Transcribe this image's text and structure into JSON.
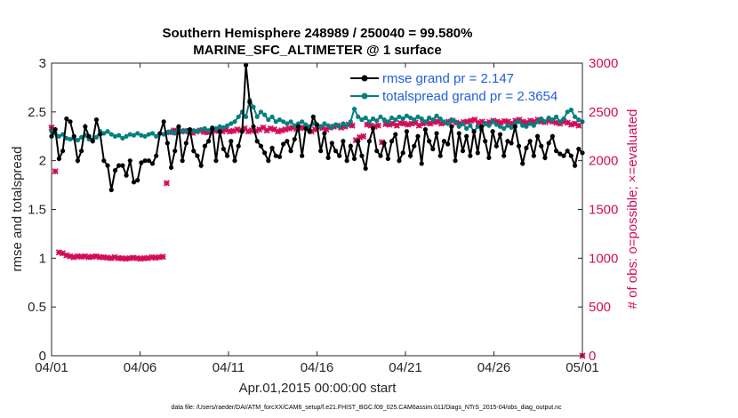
{
  "chart_data": {
    "type": "line",
    "title": "Southern Hemisphere 248989 / 250040 = 99.580%",
    "subtitle": "MARINE_SFC_ALTIMETER @ 1 surface",
    "xlabel": "Apr.01,2015 00:00:00 start",
    "ylabel": "rmse and totalspread",
    "y2label": "# of obs: o=possible; ×=evaluated",
    "footer": "data file: /Users/raeder/DAI/ATM_forcXX/CAM6_setup/f.e21.FHIST_BGC.f09_025.CAM6assim.011/Diags_NTrS_2015-04/obs_diag_output.nc",
    "xlim": [
      0,
      30
    ],
    "x_ticks": [
      0,
      5,
      10,
      15,
      20,
      25,
      30
    ],
    "x_tick_labels": [
      "04/01",
      "04/06",
      "04/11",
      "04/16",
      "04/21",
      "04/26",
      "05/01"
    ],
    "ylim": [
      0,
      3
    ],
    "y_ticks": [
      "0",
      "0.5",
      "1",
      "1.5",
      "2",
      "2.5",
      "3"
    ],
    "y2lim": [
      0,
      3000
    ],
    "y2_ticks": [
      "0",
      "500",
      "1000",
      "1500",
      "2000",
      "2500",
      "3000"
    ],
    "legend": {
      "position": "top-right",
      "entries": [
        {
          "label": "rmse grand pr = 2.147",
          "color": "#000000"
        },
        {
          "label": "totalspread grand pr = 2.3654",
          "color": "#00807f"
        }
      ]
    },
    "colors": {
      "rmse": "#000000",
      "totalspread": "#00807f",
      "obs": "#d10d5a"
    },
    "series": [
      {
        "name": "rmse",
        "axis": "left",
        "color": "#000000",
        "values": [
          2.25,
          2.32,
          2.02,
          2.1,
          2.43,
          2.4,
          2.25,
          2.0,
          2.1,
          2.35,
          2.25,
          2.2,
          2.42,
          2.27,
          2.0,
          1.95,
          1.7,
          1.9,
          1.95,
          1.95,
          1.85,
          2.0,
          1.78,
          1.8,
          1.98,
          2.0,
          2.0,
          1.97,
          2.05,
          2.28,
          2.4,
          2.18,
          1.93,
          2.1,
          2.35,
          2.0,
          2.18,
          2.32,
          2.1,
          2.05,
          1.95,
          2.15,
          2.2,
          2.33,
          2.0,
          2.3,
          2.12,
          2.05,
          2.2,
          2.0,
          2.15,
          2.3,
          2.98,
          2.6,
          2.35,
          2.2,
          2.15,
          2.08,
          2.0,
          2.13,
          2.05,
          2.04,
          2.17,
          2.2,
          2.1,
          2.22,
          2.35,
          2.05,
          2.33,
          2.3,
          2.45,
          2.37,
          2.1,
          2.28,
          2.03,
          2.18,
          2.1,
          2.05,
          2.2,
          2.0,
          2.15,
          2.02,
          2.2,
          2.05,
          1.92,
          2.2,
          2.33,
          2.1,
          2.05,
          2.18,
          2.02,
          2.2,
          2.27,
          2.0,
          2.08,
          2.3,
          2.05,
          2.15,
          2.25,
          1.97,
          2.32,
          2.2,
          2.12,
          2.28,
          2.05,
          2.2,
          2.17,
          2.35,
          2.0,
          2.28,
          2.1,
          2.25,
          2.05,
          2.3,
          2.08,
          2.35,
          2.2,
          2.03,
          2.3,
          2.15,
          2.27,
          2.05,
          2.2,
          2.18,
          2.35,
          2.15,
          1.97,
          2.13,
          2.2,
          2.05,
          2.25,
          2.15,
          2.03,
          2.18,
          2.25,
          2.1,
          2.07,
          2.05,
          2.1,
          2.05,
          1.95,
          2.12,
          2.08
        ]
      },
      {
        "name": "totalspread",
        "axis": "left",
        "color": "#00807f",
        "values": [
          2.3,
          2.28,
          2.25,
          2.27,
          2.23,
          2.22,
          2.23,
          2.21,
          2.24,
          2.26,
          2.22,
          2.21,
          2.24,
          2.3,
          2.28,
          2.3,
          2.27,
          2.25,
          2.26,
          2.23,
          2.25,
          2.27,
          2.26,
          2.28,
          2.26,
          2.25,
          2.27,
          2.28,
          2.25,
          2.28,
          2.27,
          2.29,
          2.3,
          2.28,
          2.32,
          2.3,
          2.31,
          2.29,
          2.31,
          2.3,
          2.32,
          2.33,
          2.31,
          2.34,
          2.33,
          2.35,
          2.34,
          2.36,
          2.38,
          2.4,
          2.45,
          2.5,
          2.45,
          2.62,
          2.55,
          2.45,
          2.5,
          2.47,
          2.42,
          2.45,
          2.4,
          2.42,
          2.4,
          2.38,
          2.4,
          2.36,
          2.38,
          2.4,
          2.37,
          2.35,
          2.38,
          2.36,
          2.35,
          2.38,
          2.36,
          2.34,
          2.37,
          2.35,
          2.38,
          2.36,
          2.4,
          2.53,
          2.45,
          2.42,
          2.44,
          2.4,
          2.43,
          2.41,
          2.45,
          2.42,
          2.4,
          2.44,
          2.42,
          2.45,
          2.43,
          2.46,
          2.44,
          2.42,
          2.45,
          2.43,
          2.4,
          2.44,
          2.42,
          2.46,
          2.43,
          2.4,
          2.38,
          2.42,
          2.4,
          2.35,
          2.38,
          2.33,
          2.36,
          2.3,
          2.35,
          2.32,
          2.38,
          2.36,
          2.4,
          2.37,
          2.35,
          2.33,
          2.36,
          2.34,
          2.38,
          2.4,
          2.36,
          2.35,
          2.38,
          2.36,
          2.4,
          2.43,
          2.4,
          2.44,
          2.42,
          2.45,
          2.4,
          2.43,
          2.5,
          2.52,
          2.45,
          2.42,
          2.4
        ]
      },
      {
        "name": "obs evaluated",
        "axis": "right",
        "color": "#d10d5a",
        "values": [
          2340,
          1890,
          1060,
          1050,
          1030,
          1020,
          1010,
          1020,
          1015,
          1020,
          1010,
          1015,
          1020,
          1010,
          1010,
          1005,
          1000,
          1010,
          1000,
          1000,
          995,
          1000,
          1005,
          1000,
          995,
          1000,
          1000,
          1010,
          1005,
          1010,
          1015,
          1770,
          2290,
          2310,
          2295,
          2300,
          2305,
          2300,
          2285,
          2300,
          2310,
          2295,
          2290,
          2300,
          2310,
          2305,
          2300,
          2315,
          2300,
          2305,
          2320,
          2310,
          2330,
          2300,
          2310,
          2305,
          2320,
          2340,
          2310,
          2330,
          2320,
          2300,
          2310,
          2320,
          2330,
          2340,
          2325,
          2335,
          2340,
          2330,
          2300,
          2320,
          2345,
          2335,
          2320,
          2340,
          2350,
          2360,
          2340,
          2350,
          2370,
          2360,
          2210,
          2240,
          2250,
          2370,
          2360,
          2350,
          2360,
          2190,
          2375,
          2370,
          2380,
          2360,
          2385,
          2380,
          2370,
          2380,
          2390,
          2360,
          2380,
          2390,
          2380,
          2395,
          2400,
          2380,
          2390,
          2400,
          2410,
          2390,
          2380,
          2395,
          2400,
          2410,
          2420,
          2390,
          2400,
          2380,
          2395,
          2410,
          2400,
          2390,
          2405,
          2400,
          2380,
          2410,
          2420,
          2400,
          2390,
          2410,
          2400,
          2420,
          2400,
          2395,
          2410,
          2400,
          2390,
          2380,
          2400,
          2390,
          2370,
          2380,
          2360,
          0
        ]
      }
    ]
  }
}
